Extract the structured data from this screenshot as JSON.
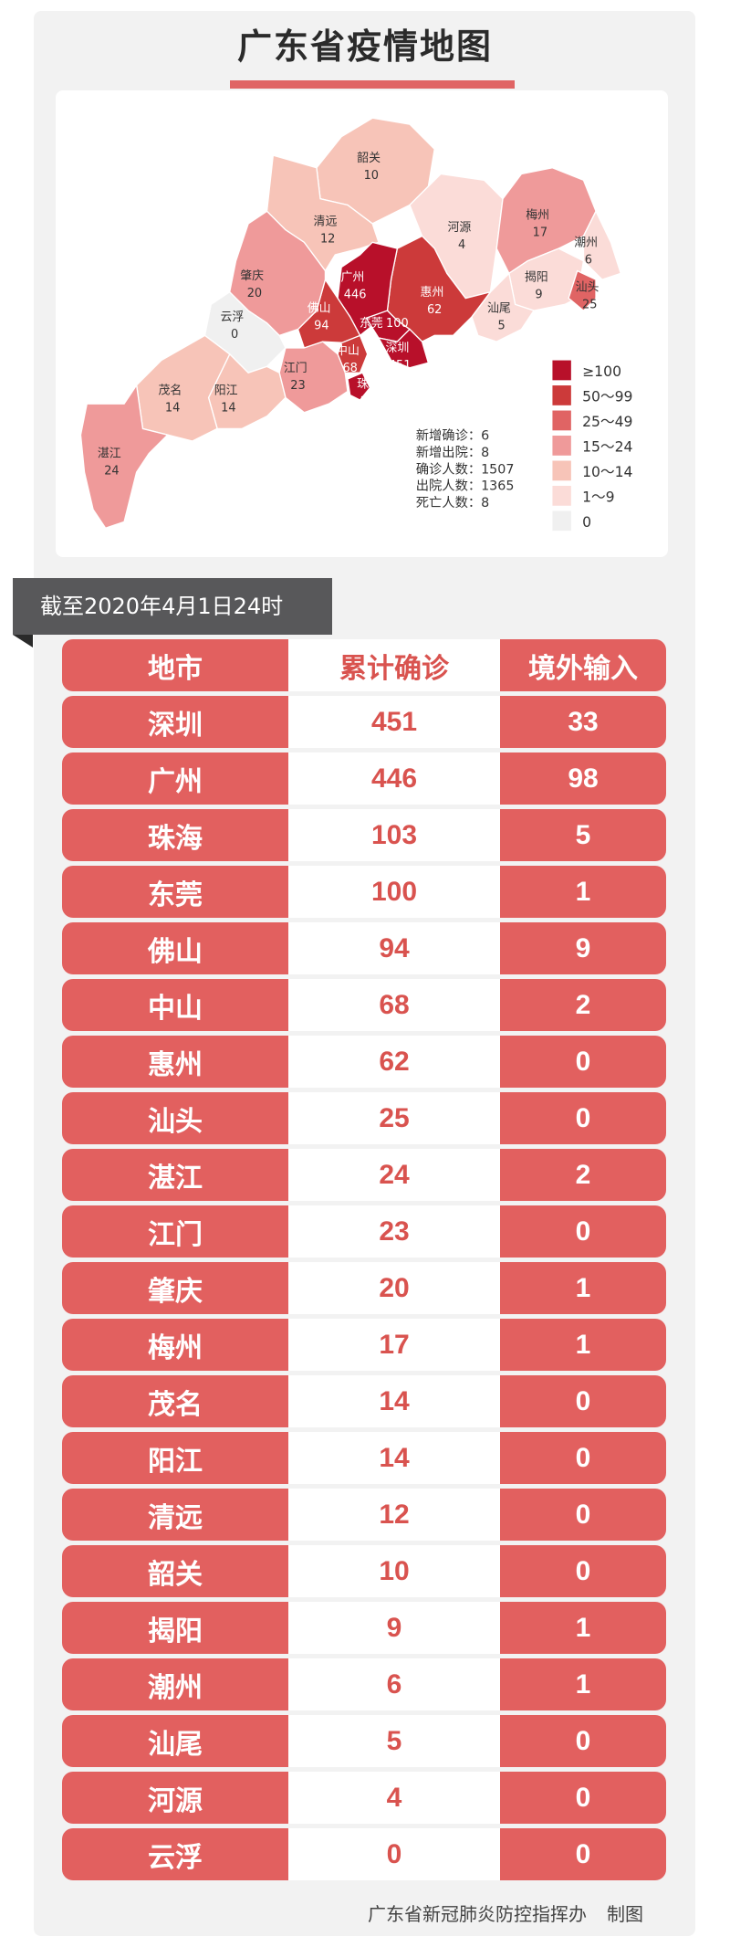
{
  "title": "广东省疫情地图",
  "date_banner": "截至2020年4月1日24时",
  "colors": {
    "accent": "#e2605f",
    "ge100": "#b8102a",
    "r50_99": "#cc3a3a",
    "r25_49": "#e06464",
    "r15_24": "#ef9a9a",
    "r10_14": "#f7c4b8",
    "r1_9": "#fbdcd8",
    "zero": "#f0f0f0"
  },
  "chart_data": {
    "type": "choropleth-map",
    "regions": [
      {
        "name": "韶关",
        "value": 10
      },
      {
        "name": "清远",
        "value": 12
      },
      {
        "name": "河源",
        "value": 4
      },
      {
        "name": "梅州",
        "value": 17
      },
      {
        "name": "潮州",
        "value": 6
      },
      {
        "name": "揭阳",
        "value": 9
      },
      {
        "name": "汕头",
        "value": 25
      },
      {
        "name": "汕尾",
        "value": 5
      },
      {
        "name": "惠州",
        "value": 62
      },
      {
        "name": "广州",
        "value": 446
      },
      {
        "name": "东莞",
        "value": 100
      },
      {
        "name": "深圳",
        "value": 451
      },
      {
        "name": "佛山",
        "value": 94
      },
      {
        "name": "中山",
        "value": 68
      },
      {
        "name": "珠海",
        "value": 103
      },
      {
        "name": "江门",
        "value": 23
      },
      {
        "name": "肇庆",
        "value": 20
      },
      {
        "name": "云浮",
        "value": 0
      },
      {
        "name": "阳江",
        "value": 14
      },
      {
        "name": "茂名",
        "value": 14
      },
      {
        "name": "湛江",
        "value": 24
      }
    ],
    "legend": [
      {
        "label": "≥100",
        "color": "#b8102a"
      },
      {
        "label": "50～99",
        "color": "#cc3a3a"
      },
      {
        "label": "25～49",
        "color": "#e06464"
      },
      {
        "label": "15～24",
        "color": "#ef9a9a"
      },
      {
        "label": "10～14",
        "color": "#f7c4b8"
      },
      {
        "label": "1～9",
        "color": "#fbdcd8"
      },
      {
        "label": "0",
        "color": "#f0f0f0"
      }
    ],
    "stats": [
      "新增确诊：6",
      "新增出院：8",
      "确诊人数：1507",
      "出院人数：1365",
      "死亡人数：8"
    ]
  },
  "table": {
    "headers": [
      "地市",
      "累计确诊",
      "境外输入"
    ],
    "rows": [
      [
        "深圳",
        "451",
        "33"
      ],
      [
        "广州",
        "446",
        "98"
      ],
      [
        "珠海",
        "103",
        "5"
      ],
      [
        "东莞",
        "100",
        "1"
      ],
      [
        "佛山",
        "94",
        "9"
      ],
      [
        "中山",
        "68",
        "2"
      ],
      [
        "惠州",
        "62",
        "0"
      ],
      [
        "汕头",
        "25",
        "0"
      ],
      [
        "湛江",
        "24",
        "2"
      ],
      [
        "江门",
        "23",
        "0"
      ],
      [
        "肇庆",
        "20",
        "1"
      ],
      [
        "梅州",
        "17",
        "1"
      ],
      [
        "茂名",
        "14",
        "0"
      ],
      [
        "阳江",
        "14",
        "0"
      ],
      [
        "清远",
        "12",
        "0"
      ],
      [
        "韶关",
        "10",
        "0"
      ],
      [
        "揭阳",
        "9",
        "1"
      ],
      [
        "潮州",
        "6",
        "1"
      ],
      [
        "汕尾",
        "5",
        "0"
      ],
      [
        "河源",
        "4",
        "0"
      ],
      [
        "云浮",
        "0",
        "0"
      ]
    ]
  },
  "footer": {
    "org": "广东省新冠肺炎防控指挥办",
    "action": "制图"
  }
}
